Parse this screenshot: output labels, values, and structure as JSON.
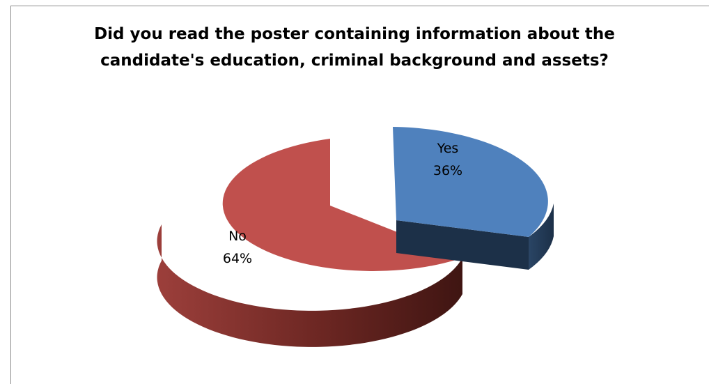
{
  "chart_data": {
    "type": "pie",
    "title_lines": [
      "Did you read the poster containing information about the",
      "candidate's education, criminal background and assets?"
    ],
    "slices": [
      {
        "label": "Yes",
        "value": 36,
        "value_label": "36%",
        "color": "#4F81BD",
        "exploded": true
      },
      {
        "label": "No",
        "value": 64,
        "value_label": "64%",
        "color": "#C0504D",
        "exploded": false
      }
    ],
    "style": "3d",
    "legend": "none"
  }
}
